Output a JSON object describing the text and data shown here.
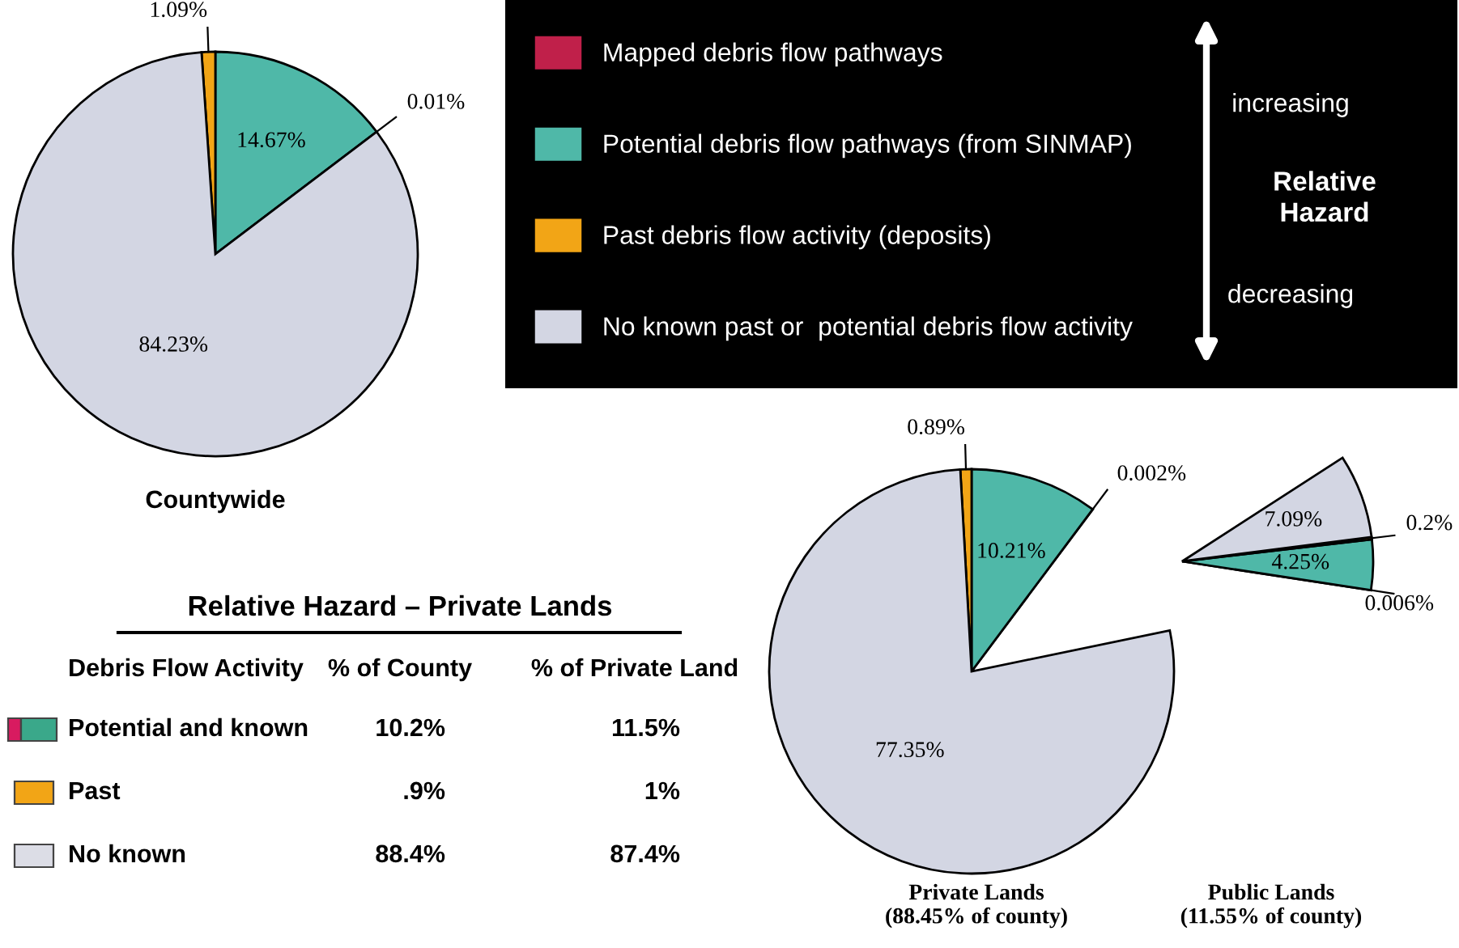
{
  "chart_data": [
    {
      "type": "pie",
      "title": "Countywide",
      "categories": [
        "Mapped debris flow pathways",
        "Potential debris flow pathways (from SINMAP)",
        "Past debris flow activity (deposits)",
        "No known past or  potential debris flow activity"
      ],
      "values": [
        0.01,
        14.67,
        1.09,
        84.23
      ],
      "value_labels": [
        "0.01%",
        "14.67%",
        "1.09%",
        "84.23%"
      ],
      "colors": [
        "#c0204a",
        "#4fb8a8",
        "#f2a516",
        "#d3d6e3"
      ],
      "legend": "right",
      "legend_title": "Relative Hazard",
      "annotations": [
        "increasing",
        "decreasing"
      ]
    },
    {
      "type": "pie",
      "title": "Private Lands\n(88.45% of county)",
      "categories": [
        null,
        null,
        null,
        null
      ],
      "values": [
        0.002,
        10.21,
        0.89,
        77.35
      ],
      "value_labels": [
        "0.002%",
        "10.21%",
        "0.89%",
        "77.35%"
      ],
      "colors": [
        "#c0204a",
        "#4fb8a8",
        "#f2a516",
        "#d3d6e3"
      ]
    },
    {
      "type": "pie",
      "title": "Public Lands\n(11.55% of county)",
      "categories": [
        null,
        null,
        null,
        null
      ],
      "values": [
        0.006,
        4.25,
        0.2,
        7.09
      ],
      "value_labels": [
        "0.006%",
        "4.25%",
        "0.2%",
        "7.09%"
      ],
      "colors": [
        "#c0204a",
        "#4fb8a8",
        "#f2a516",
        "#d3d6e3"
      ]
    },
    {
      "type": "other",
      "title": "Relative Hazard – Private Lands",
      "colors": [
        [
          "#d81b60",
          "#3aa88a"
        ],
        "#f2a516",
        "#dcdde6"
      ],
      "annotations": [
        "Debris Flow Activity",
        "% of County",
        "% of Private Land",
        "Potential and known",
        "10.2%",
        "11.5%",
        "Past",
        ".9%",
        "1%",
        "No known",
        "88.4%",
        "87.4%"
      ]
    }
  ]
}
